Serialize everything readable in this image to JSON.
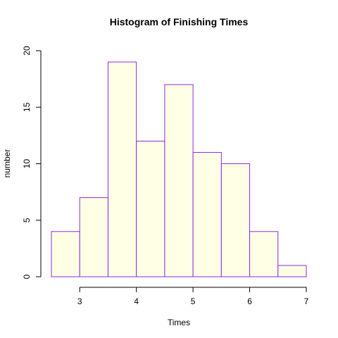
{
  "chart_data": {
    "type": "bar",
    "title": "Histogram of Finishing Times",
    "xlabel": "Times",
    "ylabel": "number",
    "bins": [
      {
        "start": 2.5,
        "end": 3.0,
        "count": 4
      },
      {
        "start": 3.0,
        "end": 3.5,
        "count": 7
      },
      {
        "start": 3.5,
        "end": 4.0,
        "count": 19
      },
      {
        "start": 4.0,
        "end": 4.5,
        "count": 12
      },
      {
        "start": 4.5,
        "end": 5.0,
        "count": 17
      },
      {
        "start": 5.0,
        "end": 5.5,
        "count": 11
      },
      {
        "start": 5.5,
        "end": 6.0,
        "count": 10
      },
      {
        "start": 6.0,
        "end": 6.5,
        "count": 4
      },
      {
        "start": 6.5,
        "end": 7.0,
        "count": 1
      }
    ],
    "xlim": [
      2.5,
      7.0
    ],
    "ylim": [
      0,
      20
    ],
    "xticks": [
      3,
      4,
      5,
      6,
      7
    ],
    "yticks": [
      0,
      5,
      10,
      15,
      20
    ],
    "grid": false,
    "bar_fill": "#ffffe5",
    "bar_border": "#8b2be2"
  }
}
